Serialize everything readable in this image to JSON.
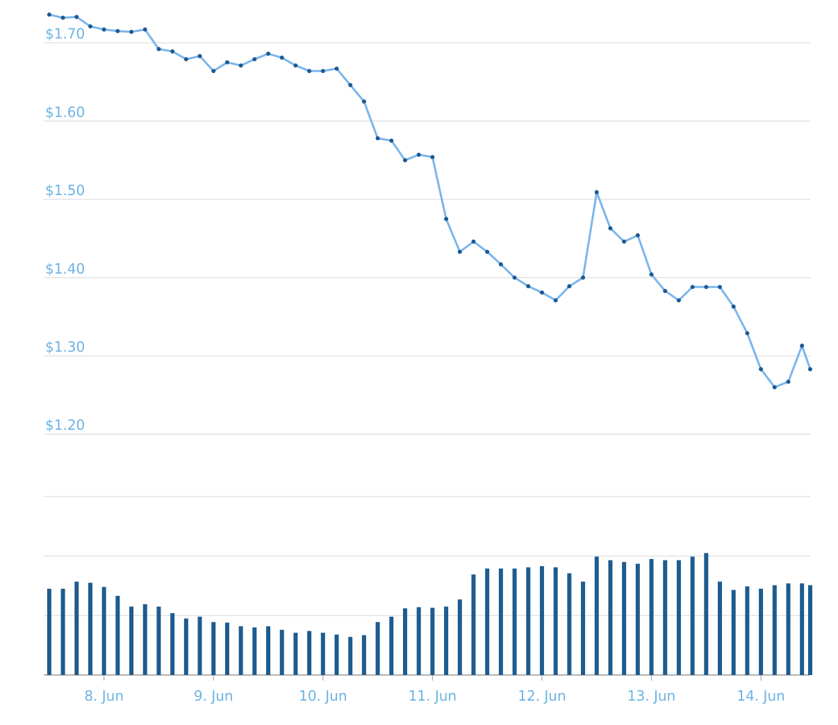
{
  "chart_data": {
    "type": "line",
    "x": [
      7.5,
      7.625,
      7.75,
      7.875,
      8,
      8.125,
      8.25,
      8.375,
      8.5,
      8.625,
      8.75,
      8.875,
      9,
      9.125,
      9.25,
      9.375,
      9.5,
      9.625,
      9.75,
      9.875,
      10,
      10.125,
      10.25,
      10.375,
      10.5,
      10.625,
      10.75,
      10.875,
      11,
      11.125,
      11.25,
      11.375,
      11.5,
      11.625,
      11.75,
      11.875,
      12,
      12.125,
      12.25,
      12.375,
      12.5,
      12.625,
      12.75,
      12.875,
      13,
      13.125,
      13.25,
      13.375,
      13.5,
      13.625,
      13.75,
      13.875,
      14,
      14.125,
      14.25,
      14.375,
      14.45
    ],
    "xlim": [
      7.45,
      14.45
    ],
    "xticks": [
      {
        "value": 8,
        "label": "8. Jun"
      },
      {
        "value": 9,
        "label": "9. Jun"
      },
      {
        "value": 10,
        "label": "10. Jun"
      },
      {
        "value": 11,
        "label": "11. Jun"
      },
      {
        "value": 12,
        "label": "12. Jun"
      },
      {
        "value": 13,
        "label": "13. Jun"
      },
      {
        "value": 14,
        "label": "14. Jun"
      }
    ],
    "ylim": [
      1.1585,
      1.7458
    ],
    "yticks": [
      {
        "value": 1.2,
        "label": "$1.20"
      },
      {
        "value": 1.3,
        "label": "$1.30"
      },
      {
        "value": 1.4,
        "label": "$1.40"
      },
      {
        "value": 1.5,
        "label": "$1.50"
      },
      {
        "value": 1.6,
        "label": "$1.60"
      },
      {
        "value": 1.7,
        "label": "$1.70"
      }
    ],
    "y2lim": [
      0,
      3
    ],
    "y2ticks": [
      0,
      1,
      2,
      3
    ],
    "grid": true,
    "series": [
      {
        "color": "#7cb5ec",
        "marker_color": "#1d5a93",
        "values": [
          1.736,
          1.732,
          1.733,
          1.721,
          1.717,
          1.715,
          1.714,
          1.717,
          1.692,
          1.689,
          1.679,
          1.683,
          1.664,
          1.675,
          1.671,
          1.679,
          1.686,
          1.681,
          1.671,
          1.664,
          1.664,
          1.667,
          1.646,
          1.625,
          1.578,
          1.575,
          1.55,
          1.557,
          1.554,
          1.475,
          1.433,
          1.446,
          1.433,
          1.417,
          1.4,
          1.389,
          1.381,
          1.371,
          1.389,
          1.4,
          1.509,
          1.463,
          1.446,
          1.454,
          1.404,
          1.383,
          1.371,
          1.388,
          1.388,
          1.388,
          1.363,
          1.329,
          1.283,
          1.26,
          1.267,
          1.313,
          1.283
        ]
      },
      {
        "type": "bar",
        "axis": "y2",
        "color": "#1e5b8e",
        "values": [
          1.45,
          1.45,
          1.57,
          1.55,
          1.48,
          1.33,
          1.15,
          1.19,
          1.15,
          1.04,
          0.95,
          0.98,
          0.89,
          0.88,
          0.82,
          0.8,
          0.82,
          0.76,
          0.71,
          0.74,
          0.71,
          0.68,
          0.64,
          0.67,
          0.89,
          0.98,
          1.12,
          1.14,
          1.13,
          1.15,
          1.27,
          1.69,
          1.79,
          1.79,
          1.79,
          1.81,
          1.83,
          1.81,
          1.71,
          1.57,
          1.99,
          1.93,
          1.9,
          1.87,
          1.95,
          1.93,
          1.93,
          1.99,
          2.05,
          1.57,
          1.43,
          1.49,
          1.45,
          1.51,
          1.54,
          1.54,
          1.51
        ]
      }
    ]
  }
}
